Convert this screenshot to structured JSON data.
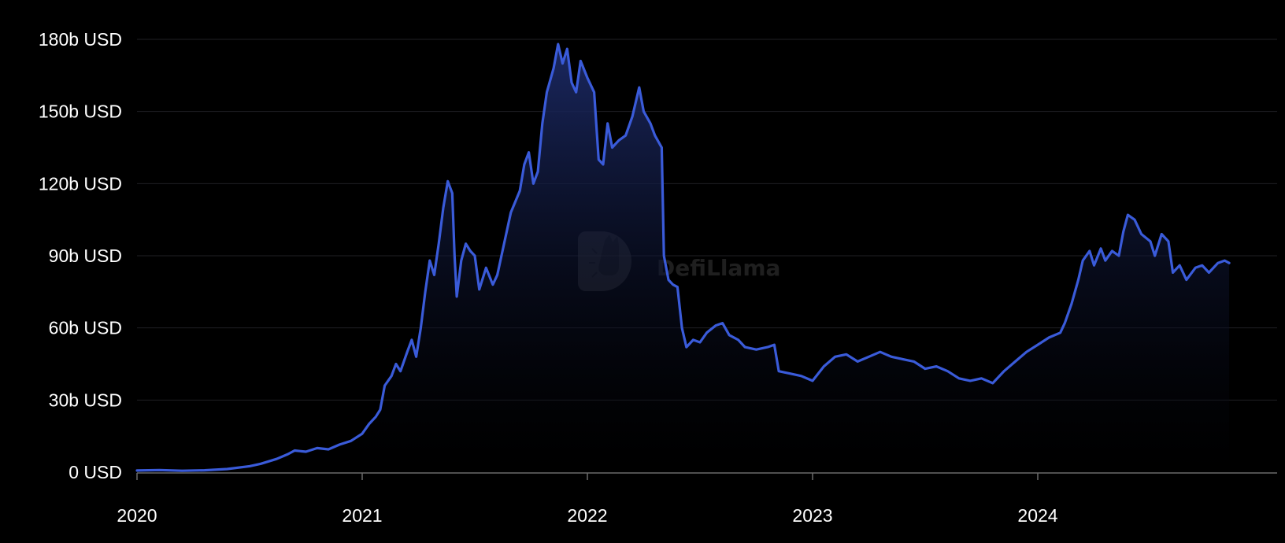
{
  "watermark": {
    "text": "DefiLlama"
  },
  "colors": {
    "background": "#000000",
    "line": "#3a5bd9",
    "area_top": "#1c2a66",
    "area_bottom": "#000000",
    "grid": "#1f1f24",
    "axis": "#6b6b6b",
    "tick_text": "#ffffff",
    "watermark": "#3a3a3a"
  },
  "chart_data": {
    "type": "area",
    "title": "",
    "xlabel": "",
    "ylabel": "",
    "x_unit": "year",
    "xlim": [
      2020.0,
      2024.85
    ],
    "ylim": [
      0,
      180
    ],
    "y_unit": "b USD",
    "grid": true,
    "legend": "none",
    "x_ticks": [
      {
        "value": 2020,
        "label": "2020"
      },
      {
        "value": 2021,
        "label": "2021"
      },
      {
        "value": 2022,
        "label": "2022"
      },
      {
        "value": 2023,
        "label": "2023"
      },
      {
        "value": 2024,
        "label": "2024"
      }
    ],
    "y_ticks": [
      {
        "value": 0,
        "label": "0 USD"
      },
      {
        "value": 30,
        "label": "30b USD"
      },
      {
        "value": 60,
        "label": "60b USD"
      },
      {
        "value": 90,
        "label": "90b USD"
      },
      {
        "value": 120,
        "label": "120b USD"
      },
      {
        "value": 150,
        "label": "150b USD"
      },
      {
        "value": 180,
        "label": "180b USD"
      }
    ],
    "series": [
      {
        "points": [
          [
            2020.0,
            0.7
          ],
          [
            2020.1,
            0.9
          ],
          [
            2020.2,
            0.6
          ],
          [
            2020.3,
            0.8
          ],
          [
            2020.4,
            1.3
          ],
          [
            2020.5,
            2.5
          ],
          [
            2020.55,
            3.5
          ],
          [
            2020.62,
            5.5
          ],
          [
            2020.67,
            7.5
          ],
          [
            2020.7,
            9.0
          ],
          [
            2020.75,
            8.5
          ],
          [
            2020.8,
            10.0
          ],
          [
            2020.85,
            9.5
          ],
          [
            2020.9,
            11.5
          ],
          [
            2020.95,
            13.0
          ],
          [
            2021.0,
            16.0
          ],
          [
            2021.03,
            20.0
          ],
          [
            2021.06,
            23.0
          ],
          [
            2021.08,
            26.0
          ],
          [
            2021.1,
            36.0
          ],
          [
            2021.13,
            40.0
          ],
          [
            2021.15,
            45.0
          ],
          [
            2021.17,
            42.0
          ],
          [
            2021.2,
            50.0
          ],
          [
            2021.22,
            55.0
          ],
          [
            2021.24,
            48.0
          ],
          [
            2021.26,
            60.0
          ],
          [
            2021.28,
            75.0
          ],
          [
            2021.3,
            88.0
          ],
          [
            2021.32,
            82.0
          ],
          [
            2021.34,
            95.0
          ],
          [
            2021.36,
            110.0
          ],
          [
            2021.38,
            121.0
          ],
          [
            2021.4,
            116.0
          ],
          [
            2021.41,
            90.0
          ],
          [
            2021.42,
            73.0
          ],
          [
            2021.44,
            88.0
          ],
          [
            2021.46,
            95.0
          ],
          [
            2021.48,
            92.0
          ],
          [
            2021.5,
            90.0
          ],
          [
            2021.52,
            76.0
          ],
          [
            2021.55,
            85.0
          ],
          [
            2021.58,
            78.0
          ],
          [
            2021.6,
            82.0
          ],
          [
            2021.63,
            95.0
          ],
          [
            2021.66,
            108.0
          ],
          [
            2021.7,
            117.0
          ],
          [
            2021.72,
            128.0
          ],
          [
            2021.74,
            133.0
          ],
          [
            2021.76,
            120.0
          ],
          [
            2021.78,
            125.0
          ],
          [
            2021.8,
            145.0
          ],
          [
            2021.82,
            158.0
          ],
          [
            2021.85,
            168.0
          ],
          [
            2021.87,
            178.0
          ],
          [
            2021.89,
            170.0
          ],
          [
            2021.91,
            176.0
          ],
          [
            2021.93,
            162.0
          ],
          [
            2021.95,
            158.0
          ],
          [
            2021.97,
            171.0
          ],
          [
            2022.0,
            164.0
          ],
          [
            2022.03,
            158.0
          ],
          [
            2022.05,
            130.0
          ],
          [
            2022.07,
            128.0
          ],
          [
            2022.09,
            145.0
          ],
          [
            2022.11,
            135.0
          ],
          [
            2022.14,
            138.0
          ],
          [
            2022.17,
            140.0
          ],
          [
            2022.2,
            148.0
          ],
          [
            2022.23,
            160.0
          ],
          [
            2022.25,
            150.0
          ],
          [
            2022.28,
            145.0
          ],
          [
            2022.3,
            140.0
          ],
          [
            2022.33,
            135.0
          ],
          [
            2022.34,
            90.0
          ],
          [
            2022.36,
            80.0
          ],
          [
            2022.38,
            78.0
          ],
          [
            2022.4,
            77.0
          ],
          [
            2022.42,
            60.0
          ],
          [
            2022.44,
            52.0
          ],
          [
            2022.47,
            55.0
          ],
          [
            2022.5,
            54.0
          ],
          [
            2022.53,
            58.0
          ],
          [
            2022.57,
            61.0
          ],
          [
            2022.6,
            62.0
          ],
          [
            2022.63,
            57.0
          ],
          [
            2022.67,
            55.0
          ],
          [
            2022.7,
            52.0
          ],
          [
            2022.75,
            51.0
          ],
          [
            2022.8,
            52.0
          ],
          [
            2022.83,
            53.0
          ],
          [
            2022.85,
            42.0
          ],
          [
            2022.9,
            41.0
          ],
          [
            2022.95,
            40.0
          ],
          [
            2023.0,
            38.0
          ],
          [
            2023.05,
            44.0
          ],
          [
            2023.1,
            48.0
          ],
          [
            2023.15,
            49.0
          ],
          [
            2023.2,
            46.0
          ],
          [
            2023.25,
            48.0
          ],
          [
            2023.3,
            50.0
          ],
          [
            2023.35,
            48.0
          ],
          [
            2023.4,
            47.0
          ],
          [
            2023.45,
            46.0
          ],
          [
            2023.5,
            43.0
          ],
          [
            2023.55,
            44.0
          ],
          [
            2023.6,
            42.0
          ],
          [
            2023.65,
            39.0
          ],
          [
            2023.7,
            38.0
          ],
          [
            2023.75,
            39.0
          ],
          [
            2023.8,
            37.0
          ],
          [
            2023.85,
            42.0
          ],
          [
            2023.9,
            46.0
          ],
          [
            2023.95,
            50.0
          ],
          [
            2024.0,
            53.0
          ],
          [
            2024.05,
            56.0
          ],
          [
            2024.1,
            58.0
          ],
          [
            2024.12,
            62.0
          ],
          [
            2024.15,
            70.0
          ],
          [
            2024.18,
            80.0
          ],
          [
            2024.2,
            88.0
          ],
          [
            2024.23,
            92.0
          ],
          [
            2024.25,
            86.0
          ],
          [
            2024.28,
            93.0
          ],
          [
            2024.3,
            88.0
          ],
          [
            2024.33,
            92.0
          ],
          [
            2024.36,
            90.0
          ],
          [
            2024.38,
            100.0
          ],
          [
            2024.4,
            107.0
          ],
          [
            2024.43,
            105.0
          ],
          [
            2024.46,
            99.0
          ],
          [
            2024.5,
            96.0
          ],
          [
            2024.52,
            90.0
          ],
          [
            2024.55,
            99.0
          ],
          [
            2024.58,
            96.0
          ],
          [
            2024.6,
            83.0
          ],
          [
            2024.63,
            86.0
          ],
          [
            2024.66,
            80.0
          ],
          [
            2024.7,
            85.0
          ],
          [
            2024.73,
            86.0
          ],
          [
            2024.76,
            83.0
          ],
          [
            2024.8,
            87.0
          ],
          [
            2024.83,
            88.0
          ],
          [
            2024.85,
            87.0
          ]
        ]
      }
    ]
  }
}
